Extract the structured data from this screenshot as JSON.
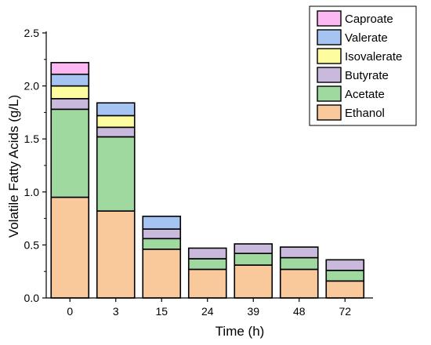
{
  "chart_data": {
    "type": "bar",
    "stacked": true,
    "categories": [
      "0",
      "3",
      "15",
      "24",
      "39",
      "48",
      "72"
    ],
    "series": [
      {
        "name": "Ethanol",
        "color": "#f9c89b",
        "values": [
          0.95,
          0.82,
          0.46,
          0.27,
          0.31,
          0.27,
          0.16
        ]
      },
      {
        "name": "Acetate",
        "color": "#a0d9a0",
        "values": [
          0.83,
          0.7,
          0.1,
          0.1,
          0.11,
          0.11,
          0.1
        ]
      },
      {
        "name": "Butyrate",
        "color": "#c9b9dc",
        "values": [
          0.1,
          0.09,
          0.09,
          0.1,
          0.09,
          0.1,
          0.1
        ]
      },
      {
        "name": "Isovalerate",
        "color": "#fdfda0",
        "values": [
          0.12,
          0.11,
          0.0,
          0.0,
          0.0,
          0.0,
          0.0
        ]
      },
      {
        "name": "Valerate",
        "color": "#a6c4f2",
        "values": [
          0.11,
          0.12,
          0.12,
          0.0,
          0.0,
          0.0,
          0.0
        ]
      },
      {
        "name": "Caproate",
        "color": "#fcb8f2",
        "values": [
          0.11,
          0.0,
          0.0,
          0.0,
          0.0,
          0.0,
          0.0
        ]
      }
    ],
    "xlabel": "Time (h)",
    "ylabel": "Volatile Fatty Acids (g/L)",
    "ylim": [
      0,
      2.5
    ],
    "yticks": [
      "0.0",
      "0.5",
      "1.0",
      "1.5",
      "2.0",
      "2.5"
    ],
    "legend_position": "top-right",
    "grid": false
  }
}
